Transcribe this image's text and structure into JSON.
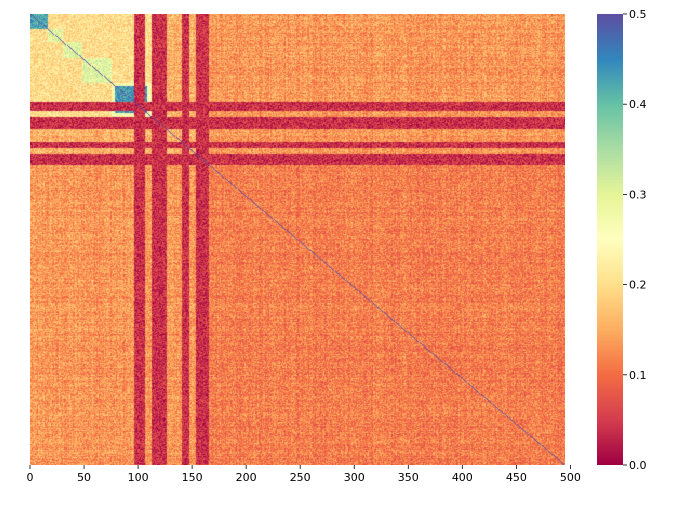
{
  "chart_data": {
    "type": "heatmap",
    "title": "",
    "xlabel": "",
    "ylabel": "",
    "n": 495,
    "x_ticks": [
      0,
      50,
      100,
      150,
      200,
      250,
      300,
      350,
      400,
      450,
      500
    ],
    "xlim": [
      0,
      495
    ],
    "colorbar": {
      "colormap": "Spectral",
      "vmin": 0.0,
      "vmax": 0.5,
      "ticks": [
        0.0,
        0.1,
        0.2,
        0.3,
        0.4,
        0.5
      ],
      "tick_labels": [
        "0.0",
        "0.1",
        "0.2",
        "0.3",
        "0.4",
        "0.5"
      ]
    },
    "description_of_values": {
      "background_mean_upper_left_region": 0.15,
      "background_mean_lower_right_region": 0.11,
      "diagonal_value": 0.5,
      "low_value_bands_index_ranges": [
        [
          112,
          126
        ],
        [
          140,
          147
        ],
        [
          153,
          165
        ]
      ],
      "low_value_rows_index_ranges": [
        [
          96,
          106
        ],
        [
          119,
          125
        ]
      ],
      "high_value_blocks": [
        {
          "range": [
            0,
            16
          ],
          "mean": 0.42
        },
        {
          "range": [
            16,
            30
          ],
          "mean": 0.3
        },
        {
          "range": [
            30,
            48
          ],
          "mean": 0.3
        },
        {
          "range": [
            48,
            75
          ],
          "mean": 0.3
        },
        {
          "range": [
            75,
            112
          ],
          "mean": 0.25
        },
        {
          "range": [
            75,
            110
          ],
          "sub_range": [
            75,
            112
          ],
          "mean": 0.44
        }
      ]
    }
  }
}
